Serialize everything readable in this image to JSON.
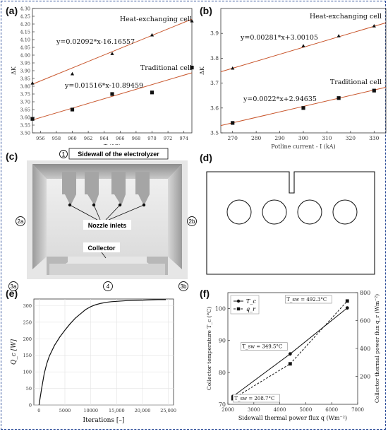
{
  "figure": {
    "panel_labels": {
      "a": "(a)",
      "b": "(b)",
      "c": "(c)",
      "d": "(d)",
      "e": "(e)",
      "f": "(f)"
    },
    "panel_c": {
      "callout_1": "1",
      "sidewall_label": "Sidewall of the electrolyzer",
      "nozzle_label": "Nozzle inlets",
      "collector_label": "Collector",
      "marker_2a": "2a",
      "marker_2b": "2b",
      "marker_3a": "3a",
      "marker_4": "4",
      "marker_3b": "3b"
    }
  },
  "chart_data": [
    {
      "panel": "a",
      "type": "scatter",
      "xlabel": "T (°C)",
      "ylabel": "ΔK",
      "xlim": [
        955,
        975
      ],
      "ylim": [
        3.5,
        4.3
      ],
      "xticks": [
        956,
        958,
        960,
        962,
        964,
        966,
        968,
        970,
        972,
        974
      ],
      "yticks": [
        3.5,
        3.55,
        3.6,
        3.65,
        3.7,
        3.75,
        3.8,
        3.85,
        3.9,
        3.95,
        4.0,
        4.05,
        4.1,
        4.15,
        4.2,
        4.25,
        4.3
      ],
      "series": [
        {
          "name": "Heat-exchanging cell",
          "marker": "triangle",
          "x": [
            955,
            960,
            965,
            970,
            975
          ],
          "y": [
            3.82,
            3.88,
            4.01,
            4.13,
            4.22
          ],
          "fit": "y=0.02092*x-16.16557",
          "fit_slope": 0.02092,
          "fit_intercept": -16.16557
        },
        {
          "name": "Traditional cell",
          "marker": "square",
          "x": [
            955,
            960,
            965,
            970,
            975
          ],
          "y": [
            3.59,
            3.65,
            3.75,
            3.76,
            3.92
          ],
          "fit": "y=0.01516*x-10.89459",
          "fit_slope": 0.01516,
          "fit_intercept": -10.89459
        }
      ]
    },
    {
      "panel": "b",
      "type": "scatter",
      "xlabel": "Potline current - I (kA)",
      "ylabel": "ΔK",
      "xlim": [
        265,
        335
      ],
      "ylim": [
        3.5,
        4.0
      ],
      "xticks": [
        270,
        280,
        290,
        300,
        310,
        320,
        330
      ],
      "yticks": [
        3.5,
        3.6,
        3.7,
        3.8,
        3.9
      ],
      "series": [
        {
          "name": "Heat-exchanging cell",
          "marker": "triangle",
          "x": [
            270,
            300,
            315,
            330
          ],
          "y": [
            3.76,
            3.85,
            3.89,
            3.93
          ],
          "fit": "y=0.00281*x+3.00105",
          "fit_slope": 0.00281,
          "fit_intercept": 3.00105
        },
        {
          "name": "Traditional cell",
          "marker": "square",
          "x": [
            270,
            300,
            315,
            330
          ],
          "y": [
            3.54,
            3.6,
            3.64,
            3.67
          ],
          "fit": "y=0.0022*x+2.94635",
          "fit_slope": 0.0022,
          "fit_intercept": 2.94635
        }
      ]
    },
    {
      "panel": "e",
      "type": "line",
      "xlabel": "Iterations [–]",
      "ylabel": "Q_c [W]",
      "xlim": [
        -1000,
        26000
      ],
      "ylim": [
        0,
        320
      ],
      "xticks": [
        0,
        5000,
        10000,
        15000,
        20000,
        25000
      ],
      "xtick_labels": [
        "0",
        "5000",
        "10000",
        "15,000",
        "20,000",
        "25,000"
      ],
      "yticks": [
        0,
        50,
        100,
        150,
        200,
        250,
        300
      ],
      "series": [
        {
          "x": [
            0,
            500,
            1000,
            1500,
            2000,
            3000,
            4000,
            5000,
            6000,
            7000,
            8000,
            9000,
            10000,
            11000,
            12000,
            13000,
            14000,
            15000,
            17000,
            19000,
            21000,
            23000,
            24500
          ],
          "y": [
            0,
            50,
            95,
            125,
            148,
            180,
            205,
            226,
            245,
            262,
            275,
            288,
            297,
            303,
            307,
            310,
            312,
            313,
            315,
            316,
            317,
            318,
            318
          ]
        }
      ]
    },
    {
      "panel": "f",
      "type": "line",
      "xlabel": "Sidewall thermal power flux q (Wm⁻²)",
      "ylabel": "Collector temperature T_c (°C)",
      "y2label": "Collector thermal power flux q_r (Wm⁻²)",
      "xlim": [
        2000,
        7000
      ],
      "ylim": [
        70,
        105
      ],
      "y2lim": [
        0,
        800
      ],
      "xticks": [
        2000,
        3000,
        4000,
        5000,
        6000,
        7000
      ],
      "yticks": [
        70,
        80,
        90,
        100
      ],
      "y2ticks": [
        200,
        400,
        600,
        800
      ],
      "legend": [
        "T_c",
        "q_r"
      ],
      "legend_position": "top-left",
      "series": [
        {
          "name": "T_c",
          "axis": "left",
          "marker": "circle",
          "x": [
            2200,
            4400,
            6600
          ],
          "y": [
            72.5,
            85.8,
            100.2
          ]
        },
        {
          "name": "q_r",
          "axis": "right",
          "marker": "square",
          "x": [
            2200,
            4400,
            6600
          ],
          "y": [
            40,
            290,
            740
          ]
        }
      ],
      "annotations": [
        {
          "text": "T_sw = 208.7°C",
          "x": 2200
        },
        {
          "text": "T_sw = 349.5°C",
          "x": 4400
        },
        {
          "text": "T_sw = 492.3°C",
          "x": 6600
        }
      ]
    }
  ]
}
